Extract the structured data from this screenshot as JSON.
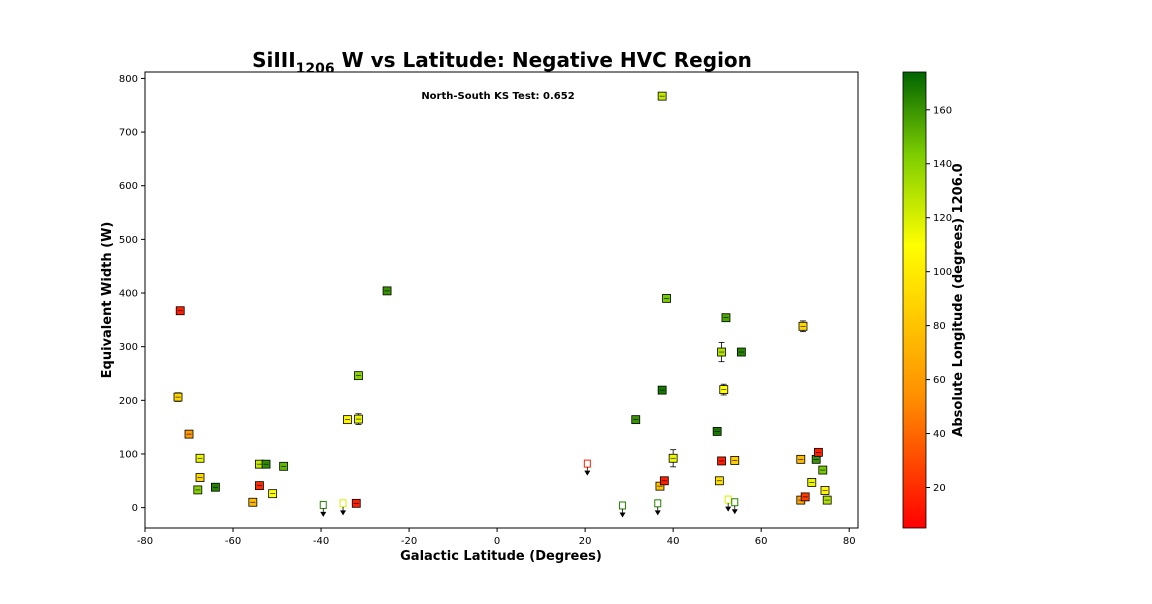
{
  "chart_data": {
    "type": "scatter",
    "title_main": "SiIII",
    "title_sub": "1206",
    "title_rest": " W vs Latitude: Negative HVC Region",
    "xlabel": "Galactic Latitude (Degrees)",
    "ylabel": "Equivalent Width (W)",
    "xlim": [
      -80,
      82
    ],
    "ylim": [
      -38,
      812
    ],
    "xticks": [
      -80,
      -60,
      -40,
      -20,
      0,
      20,
      40,
      60,
      80
    ],
    "yticks": [
      0,
      100,
      200,
      300,
      400,
      500,
      600,
      700,
      800
    ],
    "annotation": "North-South KS Test: 0.652",
    "colorbar": {
      "label": "Absolute Longitude (degrees) 1206.0",
      "range": [
        5,
        174
      ],
      "ticks": [
        20,
        40,
        60,
        80,
        100,
        120,
        140,
        160
      ],
      "colors": [
        "#ff0000",
        "#ff8c00",
        "#ffff00",
        "#7ccd00",
        "#006400"
      ]
    },
    "points": [
      {
        "x": -72,
        "y": 367,
        "c": 15
      },
      {
        "x": -72.5,
        "y": 206,
        "c": 90,
        "err": 8
      },
      {
        "x": -70,
        "y": 137,
        "c": 60
      },
      {
        "x": -67.5,
        "y": 92,
        "c": 115
      },
      {
        "x": -67.5,
        "y": 56,
        "c": 90
      },
      {
        "x": -68,
        "y": 33,
        "c": 140
      },
      {
        "x": -64,
        "y": 38,
        "c": 165
      },
      {
        "x": -55.5,
        "y": 10,
        "c": 75
      },
      {
        "x": -54,
        "y": 41,
        "c": 20
      },
      {
        "x": -54,
        "y": 81,
        "c": 125
      },
      {
        "x": -52.5,
        "y": 81,
        "c": 162
      },
      {
        "x": -51,
        "y": 26,
        "c": 110
      },
      {
        "x": -48.5,
        "y": 77,
        "c": 150
      },
      {
        "x": -39.5,
        "y": 5,
        "c": 165,
        "upper": true
      },
      {
        "x": -35,
        "y": 8,
        "c": 120,
        "upper": true
      },
      {
        "x": -34,
        "y": 164,
        "c": 105
      },
      {
        "x": -32,
        "y": 8,
        "c": 15
      },
      {
        "x": -31.5,
        "y": 165,
        "c": 115,
        "err": 10
      },
      {
        "x": -31.5,
        "y": 246,
        "c": 140
      },
      {
        "x": -25,
        "y": 404,
        "c": 160
      },
      {
        "x": 20.5,
        "y": 82,
        "c": 15,
        "upper": true
      },
      {
        "x": 28.5,
        "y": 4,
        "c": 165,
        "upper": true
      },
      {
        "x": 31.5,
        "y": 164,
        "c": 160
      },
      {
        "x": 36.5,
        "y": 8,
        "c": 165,
        "upper": true
      },
      {
        "x": 37,
        "y": 40,
        "c": 80
      },
      {
        "x": 37.5,
        "y": 219,
        "c": 168
      },
      {
        "x": 38,
        "y": 50,
        "c": 15
      },
      {
        "x": 37.5,
        "y": 767,
        "c": 125
      },
      {
        "x": 38.5,
        "y": 390,
        "c": 145
      },
      {
        "x": 40,
        "y": 92,
        "c": 115,
        "err": 16
      },
      {
        "x": 50,
        "y": 142,
        "c": 168
      },
      {
        "x": 50.5,
        "y": 50,
        "c": 95
      },
      {
        "x": 51,
        "y": 87,
        "c": 15
      },
      {
        "x": 51,
        "y": 290,
        "c": 130,
        "err": 18
      },
      {
        "x": 51.5,
        "y": 220,
        "c": 110,
        "err": 10
      },
      {
        "x": 52,
        "y": 354,
        "c": 155
      },
      {
        "x": 52.5,
        "y": 15,
        "c": 120,
        "upper": true
      },
      {
        "x": 54,
        "y": 88,
        "c": 85
      },
      {
        "x": 54,
        "y": 10,
        "c": 165,
        "upper": true
      },
      {
        "x": 55.5,
        "y": 290,
        "c": 165
      },
      {
        "x": 69,
        "y": 90,
        "c": 75
      },
      {
        "x": 69,
        "y": 14,
        "c": 65
      },
      {
        "x": 69.5,
        "y": 338,
        "c": 90,
        "err": 10
      },
      {
        "x": 70,
        "y": 20,
        "c": 25
      },
      {
        "x": 71.5,
        "y": 47,
        "c": 115
      },
      {
        "x": 72.5,
        "y": 90,
        "c": 160
      },
      {
        "x": 73,
        "y": 103,
        "c": 15
      },
      {
        "x": 74,
        "y": 70,
        "c": 145
      },
      {
        "x": 74.5,
        "y": 32,
        "c": 105
      },
      {
        "x": 75,
        "y": 14,
        "c": 130
      }
    ]
  }
}
